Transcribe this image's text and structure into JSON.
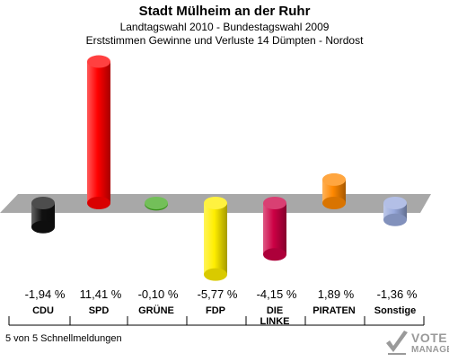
{
  "header": {
    "title": "Stadt Mülheim an der Ruhr",
    "subtitle1": "Landtagswahl 2010 - Bundestagswahl 2009",
    "subtitle2": "Erststimmen Gewinne und Verluste 14 Dümpten - Nordost"
  },
  "footer": {
    "status_text": "5 von 5 Schnellmeldungen"
  },
  "logo": {
    "line1": "VOTE",
    "line2": "MANAGER"
  },
  "chart_data": {
    "type": "bar",
    "title": "Stadt Mülheim an der Ruhr",
    "categories": [
      "CDU",
      "SPD",
      "GRÜNE",
      "FDP",
      "DIE LINKE",
      "PIRATEN",
      "Sonstige"
    ],
    "category_lines": [
      [
        "CDU"
      ],
      [
        "SPD"
      ],
      [
        "GRÜNE"
      ],
      [
        "FDP"
      ],
      [
        "DIE",
        "LINKE"
      ],
      [
        "PIRATEN"
      ],
      [
        "Sonstige"
      ]
    ],
    "values": [
      -1.94,
      11.41,
      -0.1,
      -5.77,
      -4.15,
      1.89,
      -1.36
    ],
    "value_labels": [
      "-1,94 %",
      "11,41 %",
      "-0,10 %",
      "-5,77 %",
      "-4,15 %",
      "1,89 %",
      "-1,36 %"
    ],
    "colors": [
      "#111111",
      "#ff0000",
      "#44aa22",
      "#ffee00",
      "#cc0044",
      "#ff8800",
      "#99aadd"
    ],
    "ylim": [
      -6,
      12
    ],
    "legend": "none"
  }
}
